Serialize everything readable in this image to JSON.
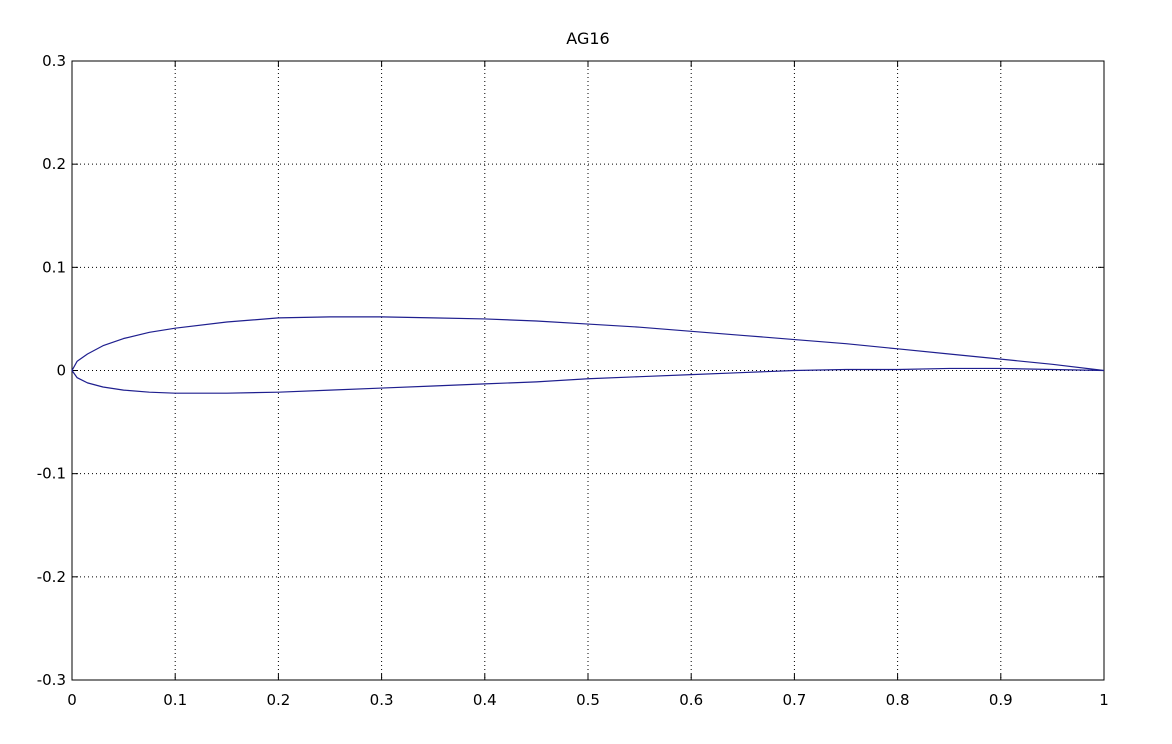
{
  "chart_data": {
    "type": "line",
    "title": "AG16",
    "xlabel": "",
    "ylabel": "",
    "xlim": [
      0,
      1
    ],
    "ylim": [
      -0.3,
      0.3
    ],
    "xticks": [
      "0",
      "0.1",
      "0.2",
      "0.3",
      "0.4",
      "0.5",
      "0.6",
      "0.7",
      "0.8",
      "0.9",
      "1"
    ],
    "yticks": [
      "0.3",
      "0.2",
      "0.1",
      "0",
      "-0.1",
      "-0.2",
      "-0.3"
    ],
    "grid": true,
    "line_color": "#1f1f8f",
    "series": [
      {
        "x": [
          1.0,
          0.95,
          0.9,
          0.85,
          0.8,
          0.75,
          0.7,
          0.65,
          0.6,
          0.55,
          0.5,
          0.45,
          0.4,
          0.35,
          0.3,
          0.25,
          0.2,
          0.15,
          0.1,
          0.075,
          0.05,
          0.03,
          0.015,
          0.005,
          0.0,
          0.005,
          0.015,
          0.03,
          0.05,
          0.075,
          0.1,
          0.15,
          0.2,
          0.25,
          0.3,
          0.35,
          0.4,
          0.45,
          0.5,
          0.55,
          0.6,
          0.65,
          0.7,
          0.75,
          0.8,
          0.85,
          0.9,
          0.95,
          1.0
        ],
        "y": [
          0.0,
          0.006,
          0.011,
          0.016,
          0.021,
          0.026,
          0.03,
          0.034,
          0.038,
          0.042,
          0.045,
          0.048,
          0.05,
          0.051,
          0.052,
          0.052,
          0.051,
          0.047,
          0.041,
          0.037,
          0.031,
          0.024,
          0.016,
          0.009,
          0.0,
          -0.007,
          -0.012,
          -0.016,
          -0.019,
          -0.021,
          -0.022,
          -0.022,
          -0.021,
          -0.019,
          -0.017,
          -0.015,
          -0.013,
          -0.011,
          -0.008,
          -0.006,
          -0.004,
          -0.002,
          0.0,
          0.001,
          0.001,
          0.002,
          0.002,
          0.001,
          0.0
        ]
      }
    ]
  }
}
